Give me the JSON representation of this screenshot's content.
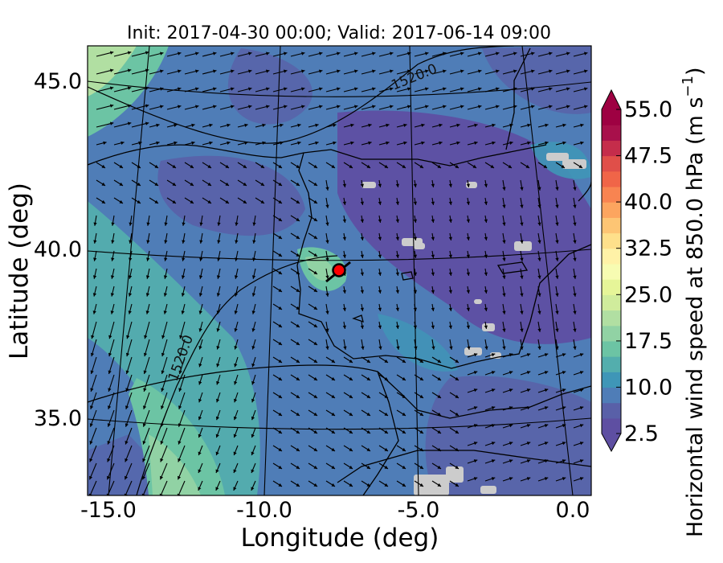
{
  "title": "Init: 2017-04-30 00:00; Valid: 2017-06-14 09:00",
  "map": {
    "xlabel": "Longitude (deg)",
    "ylabel": "Latitude (deg)",
    "x_ticks": [
      "-15.0",
      "-10.0",
      "-5.0",
      "0.0"
    ],
    "y_ticks": [
      "45.0",
      "40.0",
      "35.0"
    ],
    "contour_labels": [
      "1520.0",
      "1520.0"
    ],
    "marker": {
      "lon": -7.6,
      "lat": 39.4,
      "color": "#ff0000"
    },
    "field": "Horizontal wind speed at 850.0 hPa",
    "land_missing_color": "#cccccc"
  },
  "colorbar": {
    "label": "Horizontal wind speed at 850.0 hPa (m s",
    "label_exp": "−1",
    "label_close": ")",
    "tick_labels": [
      "55.0",
      "47.5",
      "40.0",
      "32.5",
      "25.0",
      "17.5",
      "10.0",
      "2.5"
    ],
    "min": 2.5,
    "max": 55.0,
    "colors": [
      "#5e4fa2",
      "#5960a8",
      "#4f7db7",
      "#3f96b7",
      "#53aead",
      "#6cc4a4",
      "#91d2a4",
      "#b1dfa2",
      "#d0ec9c",
      "#e6f598",
      "#f7fcb2",
      "#fff2a7",
      "#fee08b",
      "#fdc574",
      "#fca55f",
      "#f88451",
      "#f06548",
      "#e04f49",
      "#c52d4b",
      "#a8104b",
      "#9e0142"
    ]
  }
}
